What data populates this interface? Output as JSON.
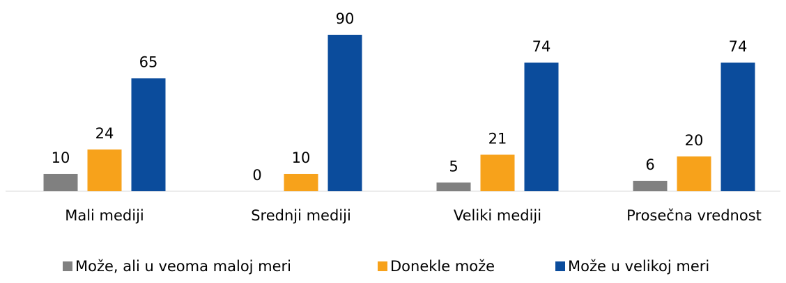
{
  "chart_data": {
    "type": "bar",
    "categories": [
      "Mali mediji",
      "Srednji mediji",
      "Veliki mediji",
      "Prosečna vrednost"
    ],
    "series": [
      {
        "name": "Može, ali u veoma maloj meri",
        "color": "#808080",
        "values": [
          10,
          0,
          5,
          6
        ]
      },
      {
        "name": "Donekle može",
        "color": "#f7a21b",
        "values": [
          24,
          10,
          21,
          20
        ]
      },
      {
        "name": "Može u velikoj meri",
        "color": "#0b4c9c",
        "values": [
          65,
          90,
          74,
          74
        ]
      }
    ],
    "ylim": [
      0,
      90
    ],
    "legend": "bottom"
  }
}
